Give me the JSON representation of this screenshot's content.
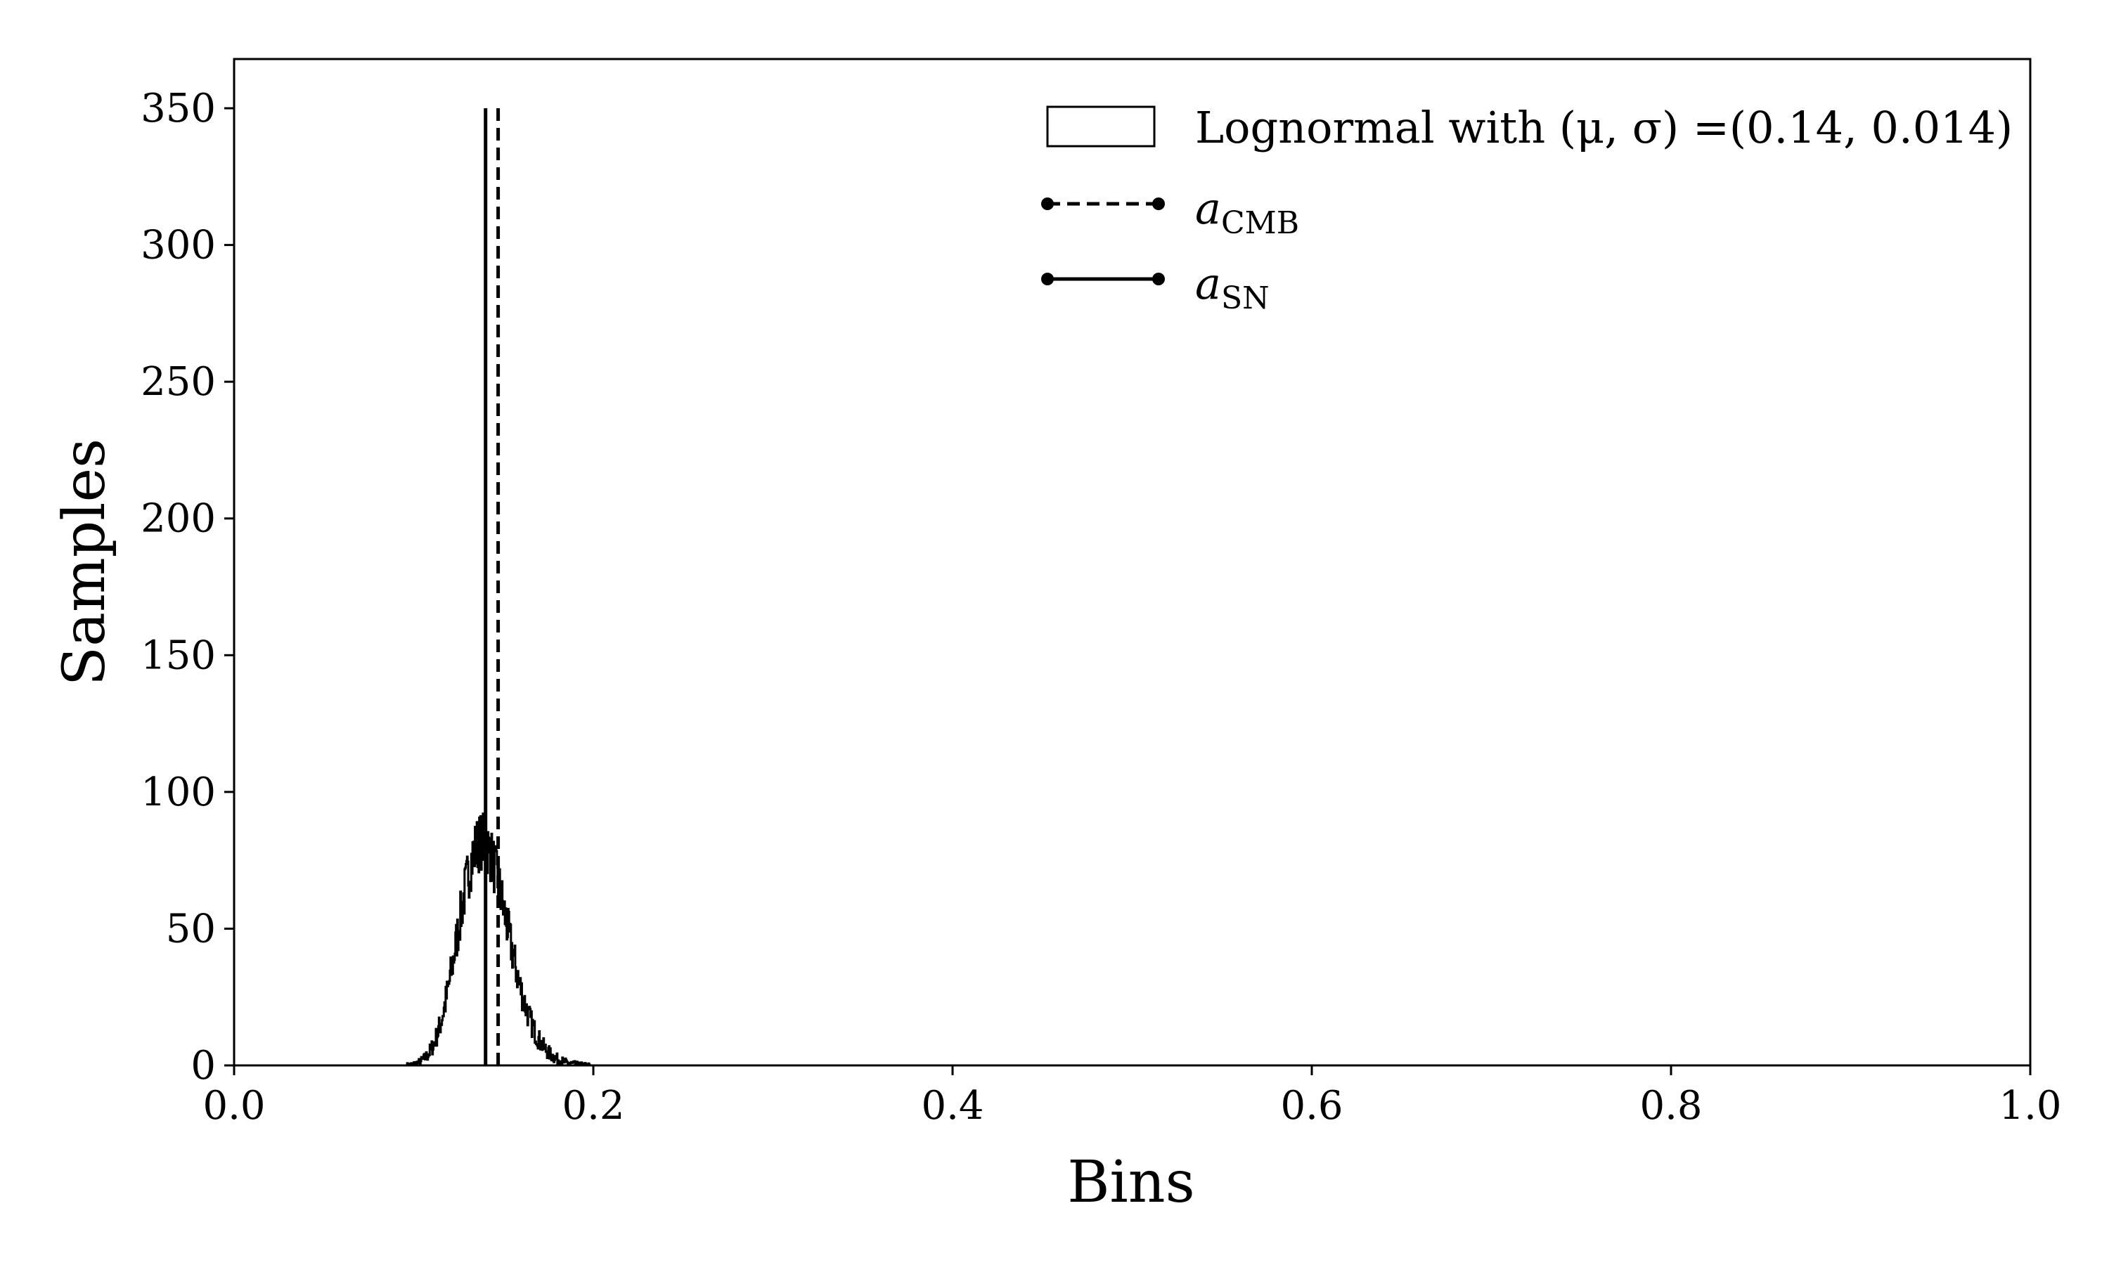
{
  "chart_data": {
    "type": "histogram",
    "xlabel": "Bins",
    "ylabel": "Samples",
    "xlim": [
      0,
      1
    ],
    "ylim": [
      0,
      368
    ],
    "x_ticks": [
      {
        "value": 0.0,
        "label": "0.0"
      },
      {
        "value": 0.2,
        "label": "0.2"
      },
      {
        "value": 0.4,
        "label": "0.4"
      },
      {
        "value": 0.6,
        "label": "0.6"
      },
      {
        "value": 0.8,
        "label": "0.8"
      },
      {
        "value": 1.0,
        "label": "1.0"
      }
    ],
    "y_ticks": [
      {
        "value": 0,
        "label": "0"
      },
      {
        "value": 50,
        "label": "50"
      },
      {
        "value": 100,
        "label": "100"
      },
      {
        "value": 150,
        "label": "150"
      },
      {
        "value": 200,
        "label": "200"
      },
      {
        "value": 250,
        "label": "250"
      },
      {
        "value": 300,
        "label": "300"
      },
      {
        "value": 350,
        "label": "350"
      }
    ],
    "histogram": {
      "name": "Lognormal with (μ, σ) =(0.14, 0.014)",
      "legend_label": "Lognormal with (μ, σ) =(0.14, 0.014)",
      "style": "step",
      "mu": 0.14,
      "sigma": 0.014,
      "x_range": [
        0.096,
        0.198
      ],
      "peak": 82
    },
    "vlines": [
      {
        "name": "a_CMB",
        "legend_base": "a",
        "legend_sub": "CMB",
        "x": 0.147,
        "ymin": 0,
        "ymax": 350,
        "dash": "dashed"
      },
      {
        "name": "a_SN",
        "legend_base": "a",
        "legend_sub": "SN",
        "x": 0.14,
        "ymin": 0,
        "ymax": 350,
        "dash": "solid"
      }
    ],
    "grid": false,
    "legend_position": "top-right",
    "colors": {
      "line": "#000000",
      "background": "#ffffff"
    }
  }
}
